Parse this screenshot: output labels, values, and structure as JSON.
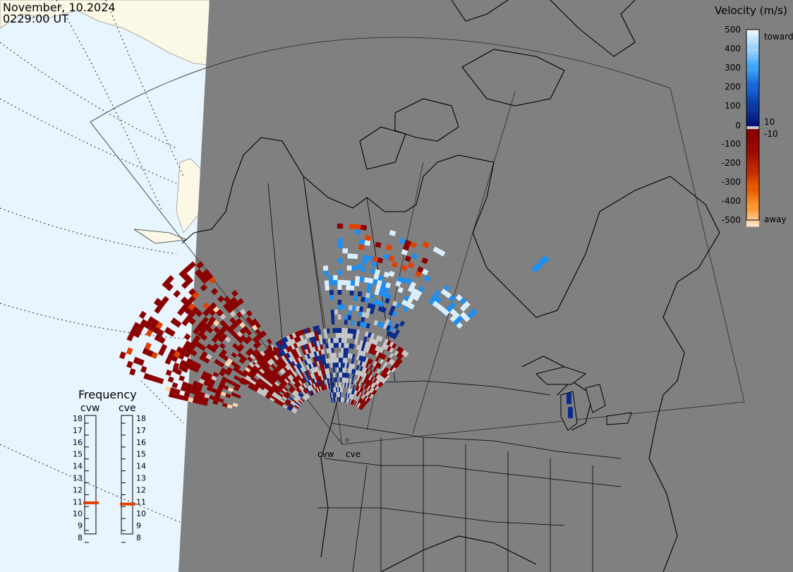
{
  "header": {
    "date": "November, 10.2024",
    "time": "0229:00 UT"
  },
  "legend": {
    "title": "Velocity (m/s)",
    "ticks": [
      "500",
      "400",
      "300",
      "200",
      "100",
      "10",
      "0",
      "-10",
      "-100",
      "-200",
      "-300",
      "-400",
      "-500"
    ],
    "toward_label": "toward",
    "away_label": "away",
    "colors": {
      "toward_high": "#dcefff",
      "toward_mid": "#1f8ff0",
      "toward_low": "#0a2a8c",
      "ground_scatter": "#c8c8c8",
      "away_low": "#8a0000",
      "away_mid": "#e04000",
      "away_high": "#ffd8b0"
    }
  },
  "frequency": {
    "title": "Frequency",
    "radar_left": "cvw",
    "radar_right": "cve",
    "scale": [
      "18",
      "17",
      "16",
      "15",
      "14",
      "13",
      "12",
      "11",
      "10",
      "9",
      "8"
    ],
    "cvw_mhz": 10.9,
    "cve_mhz": 10.8,
    "marker_color": "#e04000"
  },
  "radars": {
    "left_label": "cvw",
    "right_label": "cve"
  },
  "map": {
    "ocean_color": "#e8f5ff",
    "land_light_color": "#fbf8e6",
    "night_color": "#808080",
    "outline_color": "#000000"
  }
}
